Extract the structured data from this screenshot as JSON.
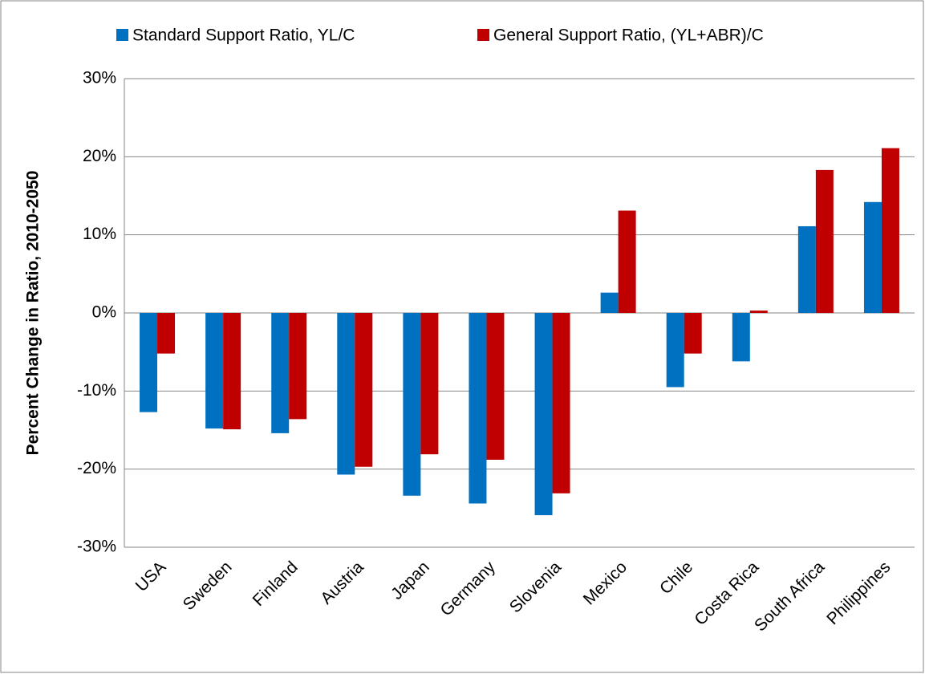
{
  "chart_data": {
    "type": "bar",
    "y_label": "Percent Change in Ratio, 2010-2050",
    "categories": [
      "USA",
      "Sweden",
      "Finland",
      "Austria",
      "Japan",
      "Germany",
      "Slovenia",
      "Mexico",
      "Chile",
      "Costa Rica",
      "South Africa",
      "Philippines"
    ],
    "series": [
      {
        "name": "Standard Support Ratio, YL/C",
        "color": "#0070c0",
        "values": [
          -12.7,
          -14.8,
          -15.4,
          -20.7,
          -23.4,
          -24.4,
          -25.9,
          2.6,
          -9.5,
          -6.2,
          11.1,
          14.2
        ]
      },
      {
        "name": "General Support Ratio, (YL+ABR)/C",
        "color": "#c00000",
        "values": [
          -5.2,
          -14.9,
          -13.6,
          -19.7,
          -18.1,
          -18.8,
          -23.1,
          13.1,
          -5.2,
          0.3,
          18.3,
          21.1
        ]
      }
    ],
    "ylim": [
      -30,
      30
    ],
    "yticks": [
      {
        "value": -30,
        "label": "-30%"
      },
      {
        "value": -20,
        "label": "-20%"
      },
      {
        "value": -10,
        "label": "-10%"
      },
      {
        "value": 0,
        "label": "0%"
      },
      {
        "value": 10,
        "label": "10%"
      },
      {
        "value": 20,
        "label": "20%"
      },
      {
        "value": 30,
        "label": "30%"
      }
    ],
    "grid": true,
    "legend": "top"
  }
}
